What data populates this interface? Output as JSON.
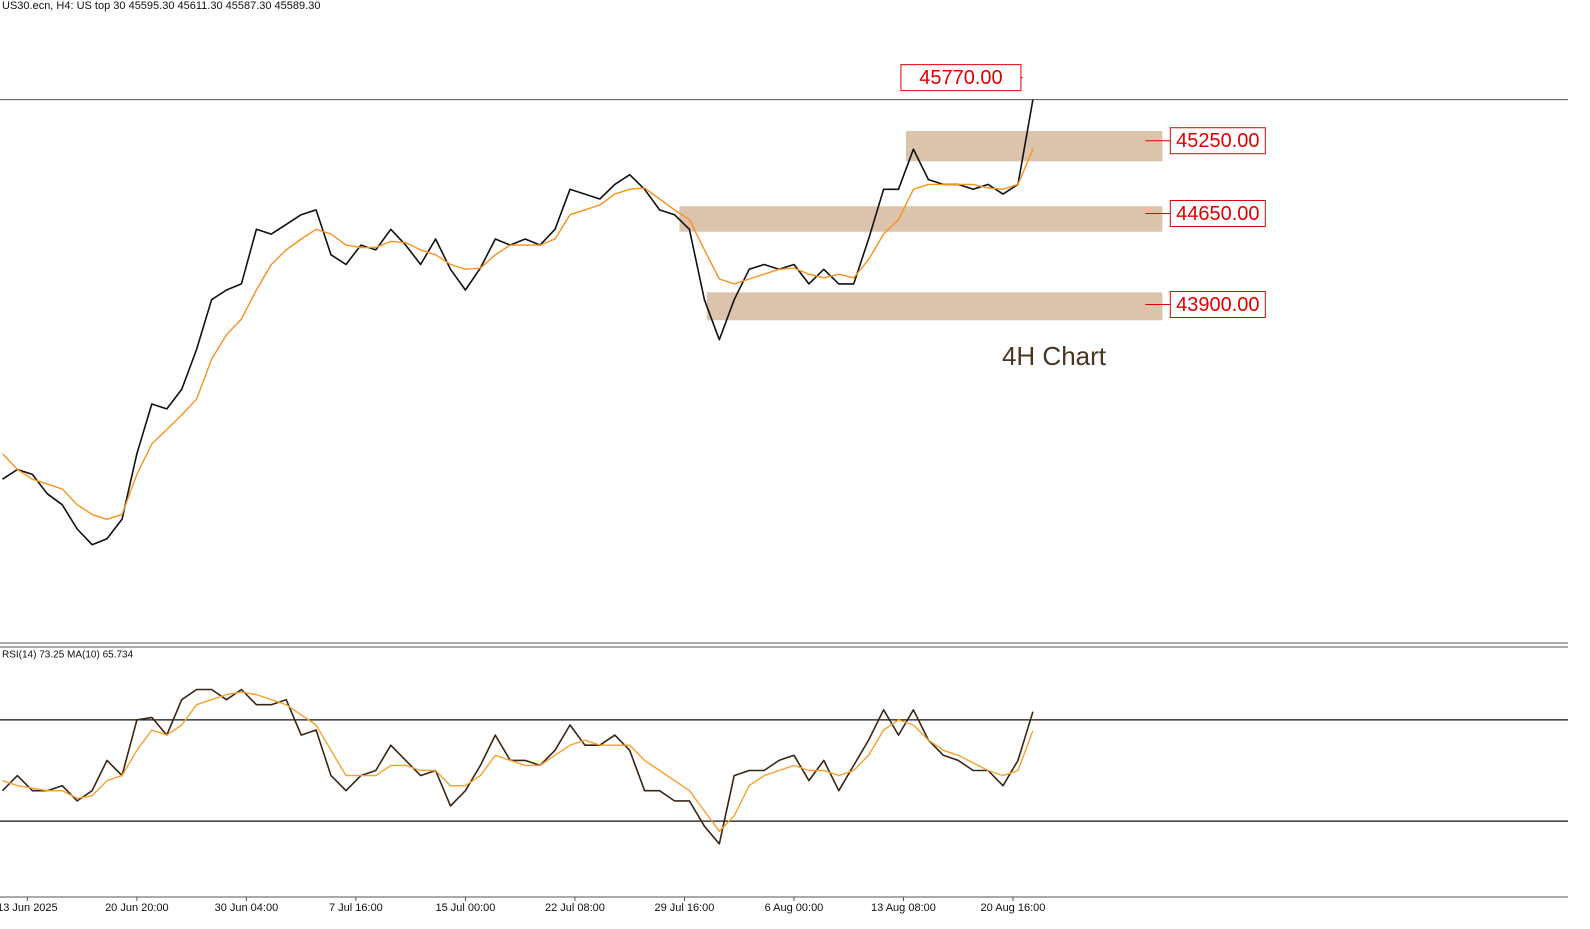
{
  "header": {
    "text": "US30.ecn, H4:  US top 30  45595.30 45611.30 45587.30 45589.30"
  },
  "chart_data": [
    {
      "type": "line",
      "annotation": "4H Chart",
      "x": [
        1,
        7,
        13,
        19,
        25,
        31,
        37,
        43,
        49,
        55,
        61,
        67,
        73,
        79,
        85,
        91,
        97,
        103,
        109,
        115,
        121,
        127,
        133,
        139,
        145,
        151,
        157,
        163,
        169,
        175,
        181,
        187,
        193,
        199,
        205,
        211,
        217,
        223,
        229,
        235,
        241,
        247,
        253,
        259,
        265,
        271,
        277,
        283,
        289,
        295,
        301,
        307,
        313,
        319,
        325,
        331,
        337,
        343,
        349,
        355,
        361,
        367,
        373,
        379,
        385,
        391,
        397,
        403,
        409,
        415
      ],
      "series": [
        {
          "color": "#111111",
          "values": [
            42460,
            42540,
            42500,
            42340,
            42250,
            42050,
            41920,
            41970,
            42130,
            42670,
            43080,
            43040,
            43200,
            43530,
            43940,
            44020,
            44070,
            44520,
            44480,
            44560,
            44640,
            44680,
            44310,
            44230,
            44390,
            44350,
            44520,
            44390,
            44230,
            44440,
            44190,
            44020,
            44200,
            44440,
            44390,
            44440,
            44390,
            44520,
            44850,
            44810,
            44770,
            44890,
            44970,
            44850,
            44680,
            44640,
            44520,
            43940,
            43610,
            43940,
            44190,
            44230,
            44190,
            44230,
            44070,
            44190,
            44070,
            44070,
            44440,
            44850,
            44850,
            45180,
            44930,
            44890,
            44890,
            44850,
            44890,
            44810,
            44890,
            45589.3
          ]
        },
        {
          "color": "#f7931e",
          "values": [
            42670,
            42540,
            42460,
            42420,
            42380,
            42250,
            42170,
            42130,
            42170,
            42500,
            42750,
            42870,
            42990,
            43120,
            43450,
            43650,
            43780,
            44020,
            44230,
            44350,
            44440,
            44520,
            44480,
            44390,
            44370,
            44370,
            44420,
            44410,
            44350,
            44310,
            44230,
            44190,
            44200,
            44310,
            44390,
            44390,
            44390,
            44440,
            44640,
            44680,
            44720,
            44810,
            44850,
            44860,
            44770,
            44680,
            44600,
            44350,
            44110,
            44070,
            44110,
            44150,
            44190,
            44200,
            44150,
            44120,
            44150,
            44120,
            44270,
            44480,
            44600,
            44850,
            44890,
            44890,
            44890,
            44890,
            44860,
            44850,
            44890,
            45180
          ]
        }
      ],
      "levels": [
        {
          "value": 45770,
          "label": "45770.00",
          "x": 411
        },
        {
          "value": 45250,
          "label": "45250.00",
          "zone": [
            45080,
            45330
          ],
          "from": 364,
          "to": 467
        },
        {
          "value": 44650,
          "label": "44650.00",
          "zone": [
            44500,
            44710
          ],
          "from": 273,
          "to": 467
        },
        {
          "value": 43900,
          "label": "43900.00",
          "zone": [
            43770,
            44000
          ],
          "from": 284,
          "to": 467
        }
      ],
      "zone_color": "#d9c1a6",
      "label_color": "#e00000",
      "xlim": [
        0,
        630
      ],
      "ylim": [
        41110,
        46410
      ]
    },
    {
      "type": "line",
      "title": "RSI(14) 73.25 MA(10) 65.734",
      "x": [
        1,
        7,
        13,
        19,
        25,
        31,
        37,
        43,
        49,
        55,
        61,
        67,
        73,
        79,
        85,
        91,
        97,
        103,
        109,
        115,
        121,
        127,
        133,
        139,
        145,
        151,
        157,
        163,
        169,
        175,
        181,
        187,
        193,
        199,
        205,
        211,
        217,
        223,
        229,
        235,
        241,
        247,
        253,
        259,
        265,
        271,
        277,
        283,
        289,
        295,
        301,
        307,
        313,
        319,
        325,
        331,
        337,
        343,
        349,
        355,
        361,
        367,
        373,
        379,
        385,
        391,
        397,
        403,
        409,
        415
      ],
      "series": [
        {
          "color": "#3a2614",
          "values": [
            42,
            48,
            42,
            42,
            44,
            38,
            42,
            54,
            48,
            70,
            71,
            64,
            78,
            82,
            82,
            78,
            82,
            76,
            76,
            78,
            64,
            66,
            48,
            42,
            48,
            50,
            60,
            54,
            48,
            50,
            36,
            42,
            52,
            64,
            54,
            54,
            52,
            58,
            68,
            60,
            60,
            64,
            58,
            42,
            42,
            38,
            38,
            28,
            21,
            48,
            50,
            50,
            54,
            56,
            46,
            54,
            42,
            52,
            62,
            74,
            64,
            74,
            62,
            56,
            54,
            50,
            50,
            44,
            54,
            73.25
          ]
        },
        {
          "color": "#f7a12e",
          "values": [
            46,
            44,
            43,
            42,
            42,
            39,
            40,
            46,
            48,
            58,
            66,
            64,
            68,
            76,
            78,
            80,
            81,
            80,
            78,
            76,
            72,
            68,
            58,
            48,
            48,
            48,
            52,
            52,
            50,
            50,
            44,
            44,
            48,
            56,
            54,
            52,
            52,
            56,
            60,
            62,
            60,
            60,
            60,
            54,
            50,
            46,
            42,
            34,
            26,
            32,
            44,
            48,
            50,
            52,
            50,
            50,
            48,
            50,
            56,
            66,
            70,
            68,
            62,
            58,
            56,
            53,
            50,
            48,
            50,
            65.734
          ]
        }
      ],
      "levels": [
        70,
        30
      ],
      "xlim": [
        0,
        630
      ],
      "ylim": [
        0,
        100
      ],
      "xticks": [
        {
          "value": 11,
          "label": "13 Jun 2025"
        },
        {
          "value": 55,
          "label": "20 Jun 20:00"
        },
        {
          "value": 99,
          "label": "30 Jun 04:00"
        },
        {
          "value": 143,
          "label": "7 Jul 16:00"
        },
        {
          "value": 187,
          "label": "15 Jul 00:00"
        },
        {
          "value": 231,
          "label": "22 Jul 08:00"
        },
        {
          "value": 275,
          "label": "29 Jul 16:00"
        },
        {
          "value": 319,
          "label": "6 Aug 00:00"
        },
        {
          "value": 363,
          "label": "13 Aug 08:00"
        },
        {
          "value": 407,
          "label": "20 Aug 16:00"
        }
      ]
    }
  ]
}
